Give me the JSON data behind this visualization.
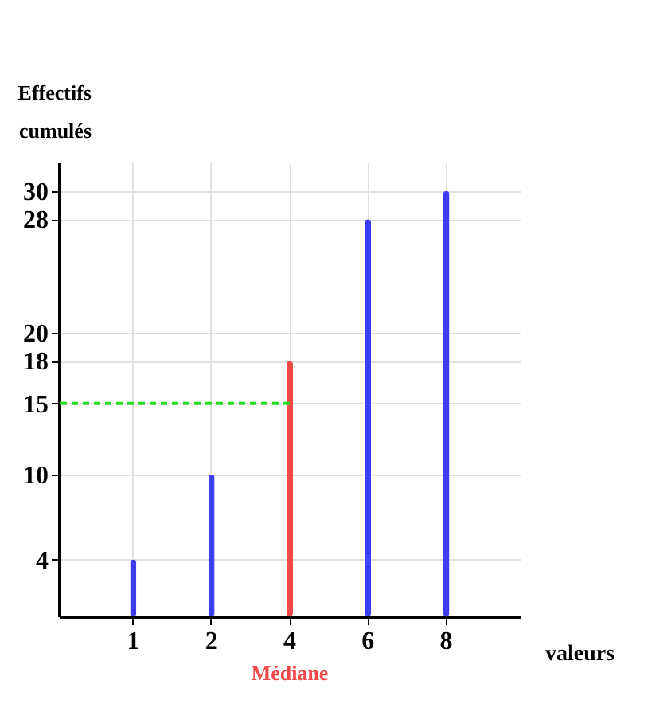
{
  "chart_data": {
    "type": "bar",
    "xlabel": "valeurs",
    "ylabel": "Effectifs cumulés",
    "categories": [
      "1",
      "2",
      "4",
      "6",
      "8"
    ],
    "values": [
      4,
      10,
      18,
      28,
      30
    ],
    "colors": [
      "#3d3df2",
      "#3d3df2",
      "#f24848",
      "#3d3df2",
      "#3d3df2"
    ],
    "ylim": [
      0,
      32
    ],
    "yticks": [
      4,
      10,
      15,
      18,
      20,
      28,
      30
    ],
    "grid": true,
    "ref_lines": [
      {
        "axis": "y",
        "value": 15,
        "color": "#22dd22",
        "line_style": "dashed"
      }
    ],
    "annotations": [
      "Médiane"
    ]
  }
}
